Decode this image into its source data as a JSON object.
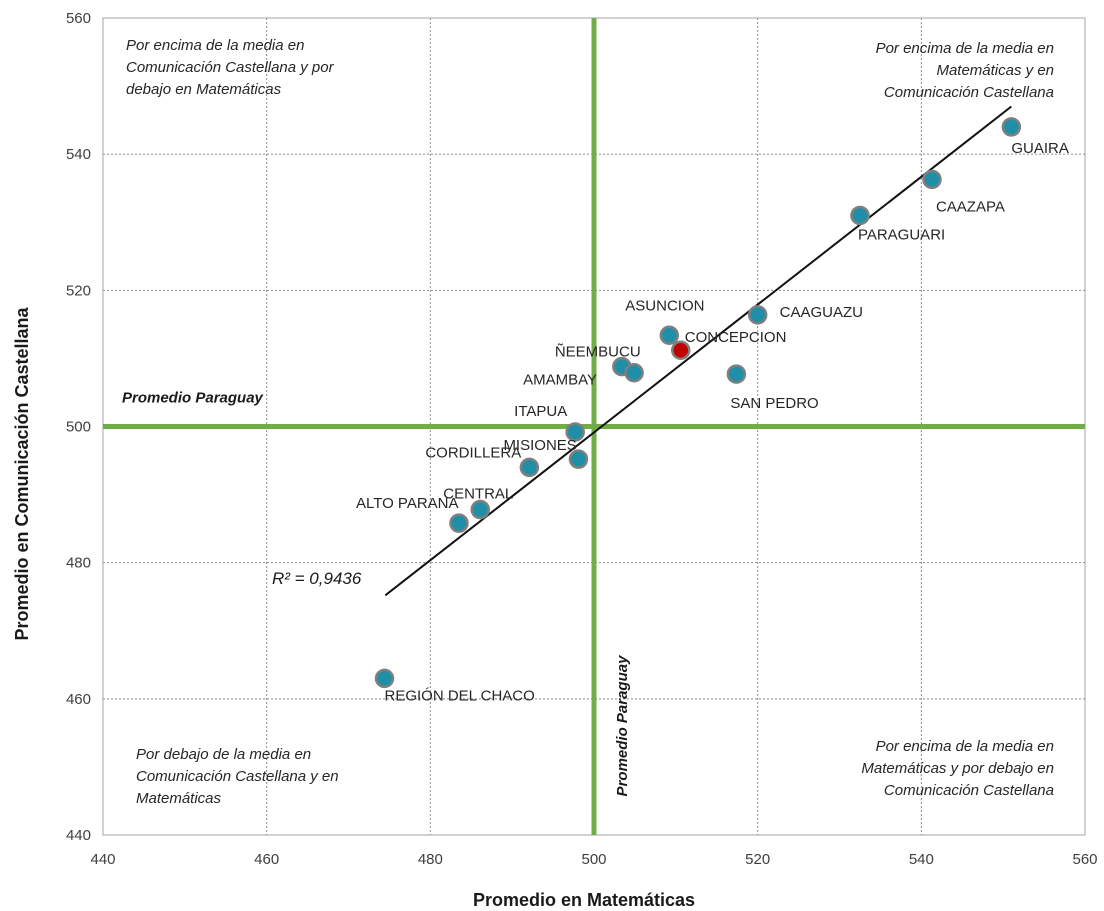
{
  "chart_data": {
    "type": "scatter",
    "xlabel": "Promedio en Matemáticas",
    "ylabel": "Promedio en Comunicación Castellana",
    "xlim": [
      440,
      560
    ],
    "ylim": [
      440,
      560
    ],
    "xticks": [
      440,
      460,
      480,
      500,
      520,
      540,
      560
    ],
    "yticks": [
      440,
      460,
      480,
      500,
      520,
      540,
      560
    ],
    "grid": true,
    "points": [
      {
        "label": "GUAIRA",
        "x": 551,
        "y": 544,
        "color": "#1f8fa8"
      },
      {
        "label": "CAAZAPA",
        "x": 541.3,
        "y": 536.3,
        "color": "#1f8fa8"
      },
      {
        "label": "PARAGUARI",
        "x": 532.5,
        "y": 531,
        "color": "#1f8fa8"
      },
      {
        "label": "CAAGUAZU",
        "x": 520,
        "y": 516.4,
        "color": "#1f8fa8"
      },
      {
        "label": "ASUNCION",
        "x": 509.2,
        "y": 513.4,
        "color": "#1f8fa8"
      },
      {
        "label": "CONCEPCION",
        "x": 510.6,
        "y": 511.2,
        "color": "#c00000"
      },
      {
        "label": "ÑEEMBUCU",
        "x": 503.4,
        "y": 508.8,
        "color": "#1f8fa8"
      },
      {
        "label": "AMAMBAY",
        "x": 504.9,
        "y": 507.9,
        "color": "#1f8fa8"
      },
      {
        "label": "SAN PEDRO",
        "x": 517.4,
        "y": 507.7,
        "color": "#1f8fa8"
      },
      {
        "label": "ITAPUA",
        "x": 497.7,
        "y": 499.2,
        "color": "#1f8fa8"
      },
      {
        "label": "MISIONES",
        "x": 498.1,
        "y": 495.2,
        "color": "#1f8fa8"
      },
      {
        "label": "CORDILLERA",
        "x": 492.1,
        "y": 494,
        "color": "#1f8fa8"
      },
      {
        "label": "CENTRAL",
        "x": 486.1,
        "y": 487.8,
        "color": "#1f8fa8"
      },
      {
        "label": "ALTO PARANA",
        "x": 483.5,
        "y": 485.8,
        "color": "#1f8fa8"
      },
      {
        "label": "REGIÓN DEL CHACO",
        "x": 474.4,
        "y": 463,
        "color": "#1f8fa8"
      }
    ],
    "trendline": {
      "x": [
        474.5,
        551
      ],
      "y": [
        475.2,
        547
      ],
      "r2_label": "R² = 0,9436"
    },
    "reference_lines": {
      "x": 500,
      "y": 500,
      "color": "#70ad47",
      "label": "Promedio Paraguay"
    },
    "quadrant_labels": {
      "top_left": [
        "Por encima de la media en",
        "Comunicación Castellana y por",
        "debajo en Matemáticas"
      ],
      "top_right": [
        "Por encima de la media en",
        "Matemáticas y en",
        "Comunicación Castellana"
      ],
      "bottom_left": [
        "Por debajo de la media en",
        "Comunicación Castellana y en",
        "Matemáticas"
      ],
      "bottom_right": [
        "Por encima de la media en",
        "Matemáticas y por debajo en",
        "Comunicación Castellana"
      ]
    }
  }
}
